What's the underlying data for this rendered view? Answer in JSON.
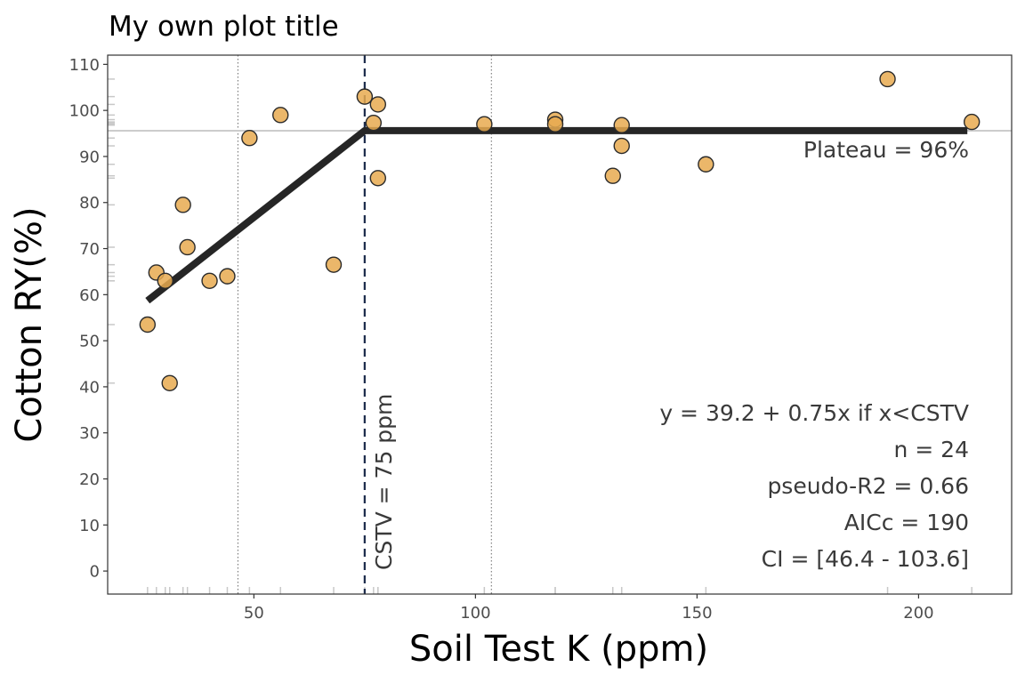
{
  "chart_data": {
    "type": "scatter",
    "title": "My own plot title",
    "xlabel": "Soil Test K (ppm)",
    "ylabel": "Cotton RY(%)",
    "xlim": [
      17,
      221
    ],
    "ylim": [
      -5,
      112
    ],
    "x_ticks": [
      50,
      100,
      150,
      200
    ],
    "y_ticks": [
      0,
      10,
      20,
      30,
      40,
      50,
      60,
      70,
      80,
      90,
      100,
      110
    ],
    "points": [
      {
        "x": 26,
        "y": 53.5
      },
      {
        "x": 28,
        "y": 64.8
      },
      {
        "x": 30,
        "y": 63.0
      },
      {
        "x": 31,
        "y": 40.8
      },
      {
        "x": 34,
        "y": 79.5
      },
      {
        "x": 35,
        "y": 70.3
      },
      {
        "x": 40,
        "y": 63.0
      },
      {
        "x": 44,
        "y": 64.0
      },
      {
        "x": 49,
        "y": 94.0
      },
      {
        "x": 56,
        "y": 99.0
      },
      {
        "x": 68,
        "y": 66.5
      },
      {
        "x": 75,
        "y": 103.0
      },
      {
        "x": 77,
        "y": 97.3
      },
      {
        "x": 78,
        "y": 101.3
      },
      {
        "x": 78,
        "y": 85.3
      },
      {
        "x": 102,
        "y": 97.0
      },
      {
        "x": 118,
        "y": 98.0
      },
      {
        "x": 118,
        "y": 97.0
      },
      {
        "x": 131,
        "y": 85.8
      },
      {
        "x": 133,
        "y": 96.8
      },
      {
        "x": 133,
        "y": 92.3
      },
      {
        "x": 152,
        "y": 88.3
      },
      {
        "x": 193,
        "y": 106.8
      },
      {
        "x": 212,
        "y": 97.5
      }
    ],
    "fit_line": [
      {
        "x": 26,
        "y": 58.7
      },
      {
        "x": 75,
        "y": 95.6
      },
      {
        "x": 211,
        "y": 95.6
      }
    ],
    "plateau_y": 95.6,
    "cstv_x": 75,
    "ci_lower_x": 46.4,
    "ci_upper_x": 103.6,
    "colors": {
      "point_fill": "#e8aa50",
      "point_stroke": "#2b2b2b",
      "fit_line": "#262626",
      "cstv_line": "#1b2a4a",
      "plateau_line": "#cccccc",
      "ci_line": "#777777",
      "rug": "#c8c8c8",
      "panel_border": "#333333"
    },
    "annotations": {
      "plateau": "Plateau = 96%",
      "cstv": "CSTV = 75 ppm",
      "stats": [
        "y = 39.2 + 0.75x if x<CSTV",
        "n = 24",
        "pseudo-R2 = 0.66",
        "AICc = 190",
        "CI = [46.4 - 103.6]"
      ]
    }
  }
}
